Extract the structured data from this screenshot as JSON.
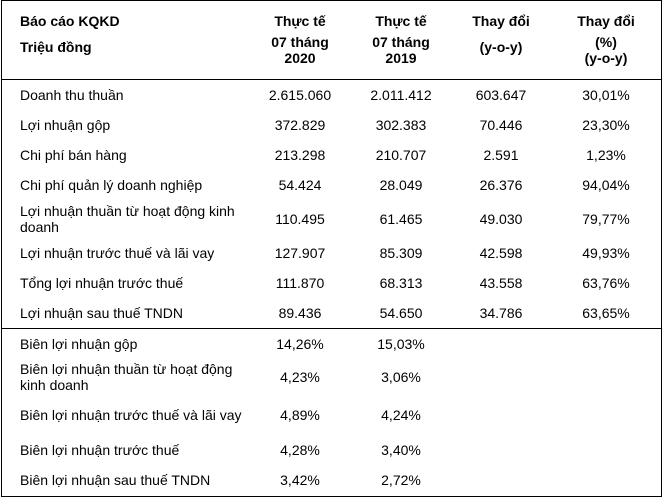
{
  "header": {
    "title": "Báo cáo KQKD",
    "unit": "Triệu đồng",
    "col1_line1": "Thực tế",
    "col1_line2": "07 tháng",
    "col1_line3": "2020",
    "col2_line1": "Thực tế",
    "col2_line2": "07 tháng",
    "col2_line3": "2019",
    "col3_line1": "Thay đổi",
    "col3_line2": "(y-o-y)",
    "col4_line1": "Thay đổi",
    "col4_line2": "(%)",
    "col4_line3": "(y-o-y)"
  },
  "rows": [
    {
      "label": "Doanh thu thuần",
      "v2020": "2.615.060",
      "v2019": "2.011.412",
      "change": "603.647",
      "pct": "30,01%"
    },
    {
      "label": "Lợi nhuận gộp",
      "v2020": "372.829",
      "v2019": "302.383",
      "change": "70.446",
      "pct": "23,30%"
    },
    {
      "label": "Chi phí bán hàng",
      "v2020": "213.298",
      "v2019": "210.707",
      "change": "2.591",
      "pct": "1,23%"
    },
    {
      "label": "Chi phí quản lý doanh nghiệp",
      "v2020": "54.424",
      "v2019": "28.049",
      "change": "26.376",
      "pct": "94,04%"
    },
    {
      "label": "Lợi nhuận thuần từ hoạt động kinh doanh",
      "v2020": "110.495",
      "v2019": "61.465",
      "change": "49.030",
      "pct": "79,77%"
    },
    {
      "label": "Lợi nhuận trước thuế và lãi vay",
      "v2020": "127.907",
      "v2019": "85.309",
      "change": "42.598",
      "pct": "49,93%"
    },
    {
      "label": "Tổng lợi nhuận trước thuế",
      "v2020": "111.870",
      "v2019": "68.313",
      "change": "43.558",
      "pct": "63,76%"
    },
    {
      "label": "Lợi nhuận sau thuế TNDN",
      "v2020": "89.436",
      "v2019": "54.650",
      "change": "34.786",
      "pct": "63,65%"
    }
  ],
  "margins": [
    {
      "label": "Biên lợi nhuận gộp",
      "v2020": "14,26%",
      "v2019": "15,03%"
    },
    {
      "label": "Biên lợi nhuận thuần từ hoạt động kinh doanh",
      "v2020": "4,23%",
      "v2019": "3,06%"
    },
    {
      "label": "Biên lợi nhuận trước thuế và lãi vay",
      "v2020": "4,89%",
      "v2019": "4,24%"
    },
    {
      "label": "Biên lợi nhuận trước thuế",
      "v2020": "4,28%",
      "v2019": "3,40%"
    },
    {
      "label": "Biên lợi nhuận sau thuế TNDN",
      "v2020": "3,42%",
      "v2019": "2,72%"
    }
  ]
}
